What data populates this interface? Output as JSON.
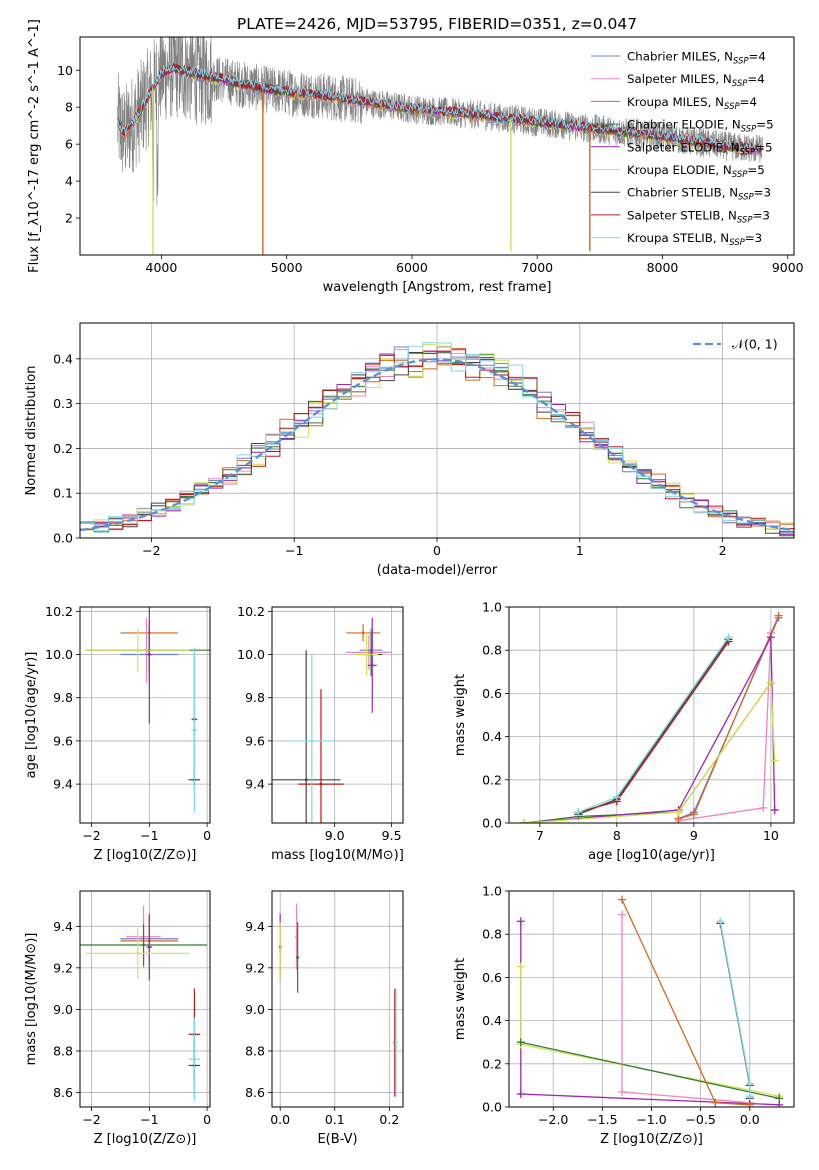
{
  "figure": {
    "title": "PLATE=2426, MJD=53795, FIBERID=0351, z=0.047"
  },
  "colors": {
    "chabrier_miles": "#6f7fd4",
    "salpeter_miles": "#ee86bd",
    "kroupa_miles": "#d2691e",
    "chabrier_elodie": "#2e7d32",
    "salpeter_elodie": "#9c27b0",
    "kroupa_elodie": "#d4e157",
    "chabrier_stelib": "#444444",
    "salpeter_stelib": "#b71c1c",
    "kroupa_stelib": "#80d8e8",
    "data_spectrum": "#808080",
    "normal_curve": "#5b8fd9"
  },
  "chart_data": [
    {
      "id": "spectrum",
      "type": "line",
      "xlabel": "wavelength [Angstrom, rest frame]",
      "ylabel": "Flux [f_λ10^-17 erg cm^-2 s^-1 A^-1]",
      "xlim": [
        3350,
        9050
      ],
      "ylim": [
        0,
        11.8
      ],
      "xticks": [
        "4000",
        "5000",
        "6000",
        "7000",
        "8000",
        "9000"
      ],
      "yticks": [
        "2",
        "4",
        "6",
        "8",
        "10"
      ],
      "grid": false,
      "legend": "right",
      "legend_entries": [
        "Chabrier MILES, N_SSP=4",
        "Salpeter MILES, N_SSP=4",
        "Kroupa MILES, N_SSP=4",
        "Chabrier ELODIE, N_SSP=5",
        "Salpeter ELODIE, N_SSP=5",
        "Kroupa ELODIE, N_SSP=5",
        "Chabrier STELIB, N_SSP=3",
        "Salpeter STELIB, N_SSP=3",
        "Kroupa STELIB, N_SSP=3"
      ],
      "data_range": [
        3650,
        8800
      ],
      "model_continuum": [
        {
          "x": 3650,
          "y": 7.2
        },
        {
          "x": 3700,
          "y": 6.5
        },
        {
          "x": 3800,
          "y": 7.4
        },
        {
          "x": 3900,
          "y": 8.6
        },
        {
          "x": 4000,
          "y": 9.8
        },
        {
          "x": 4100,
          "y": 10.1
        },
        {
          "x": 4200,
          "y": 9.9
        },
        {
          "x": 4400,
          "y": 9.6
        },
        {
          "x": 4600,
          "y": 9.3
        },
        {
          "x": 4800,
          "y": 9.0
        },
        {
          "x": 5000,
          "y": 8.8
        },
        {
          "x": 5200,
          "y": 8.7
        },
        {
          "x": 5500,
          "y": 8.4
        },
        {
          "x": 6000,
          "y": 7.9
        },
        {
          "x": 6500,
          "y": 7.6
        },
        {
          "x": 7000,
          "y": 7.2
        },
        {
          "x": 7500,
          "y": 6.8
        },
        {
          "x": 8000,
          "y": 6.4
        },
        {
          "x": 8500,
          "y": 5.9
        },
        {
          "x": 8800,
          "y": 5.7
        }
      ],
      "model_dips": [
        {
          "x": 3933,
          "y": 0.0,
          "color": "kroupa_elodie"
        },
        {
          "x": 4810,
          "y": 0.0,
          "color": "kroupa_miles"
        },
        {
          "x": 6790,
          "y": 0.2,
          "color": "kroupa_elodie"
        },
        {
          "x": 7420,
          "y": 0.2,
          "color": "kroupa_miles"
        }
      ]
    },
    {
      "id": "residuals",
      "type": "bar",
      "xlabel": "(data-model)/error",
      "ylabel": "Normed distribution",
      "xlim": [
        -2.5,
        2.5
      ],
      "ylim": [
        0,
        0.48
      ],
      "xticks": [
        "−2",
        "−1",
        "0",
        "1",
        "2"
      ],
      "yticks": [
        "0.0",
        "0.1",
        "0.2",
        "0.3",
        "0.4"
      ],
      "grid": true,
      "legend": "top-right",
      "legend_entries": [
        "𝒩(0, 1)"
      ],
      "bin_width": 0.1,
      "series_colors": [
        "chabrier_miles",
        "salpeter_miles",
        "kroupa_miles",
        "chabrier_elodie",
        "salpeter_elodie",
        "kroupa_elodie",
        "chabrier_stelib",
        "salpeter_stelib",
        "kroupa_stelib"
      ]
    },
    {
      "id": "age-vs-z",
      "type": "scatter",
      "xlabel": "Z [log10(Z/Z⊙)]",
      "ylabel": "age [log10(age/yr)]",
      "xlim": [
        -2.2,
        0.05
      ],
      "ylim": [
        9.22,
        10.22
      ],
      "xticks": [
        "−2",
        "−1",
        "0"
      ],
      "yticks": [
        "9.4",
        "9.6",
        "9.8",
        "10.0",
        "10.2"
      ],
      "grid": true,
      "points": [
        {
          "x": -1.0,
          "y": 10.1,
          "xerr": 0.5,
          "yerr": 0.06,
          "color": "kroupa_miles"
        },
        {
          "x": -1.05,
          "y": 10.02,
          "xerr": 0.15,
          "yerr": 0.15,
          "color": "salpeter_miles"
        },
        {
          "x": -1.0,
          "y": 10.0,
          "xerr": 0.5,
          "yerr": 0.12,
          "color": "chabrier_miles"
        },
        {
          "x": -1.0,
          "y": 10.02,
          "xerr": 1.1,
          "yerr": 0.1,
          "color": "chabrier_elodie"
        },
        {
          "x": -1.0,
          "y": 10.0,
          "xerr": 0.05,
          "yerr": 0.32,
          "color": "salpeter_elodie"
        },
        {
          "x": -1.2,
          "y": 10.02,
          "xerr": 0.9,
          "yerr": 0.1,
          "color": "kroupa_elodie"
        },
        {
          "x": -0.22,
          "y": 9.42,
          "xerr": 0.1,
          "yerr": 0.04,
          "color": "chabrier_stelib"
        },
        {
          "x": -0.22,
          "y": 9.7,
          "xerr": 0.05,
          "yerr": 0.3,
          "color": "salpeter_stelib"
        },
        {
          "x": -0.22,
          "y": 9.65,
          "xerr": 0.05,
          "yerr": 0.38,
          "color": "kroupa_stelib"
        }
      ]
    },
    {
      "id": "age-vs-mass",
      "type": "scatter",
      "xlabel": "mass [log10(M/M⊙)]",
      "ylabel": "",
      "xlim": [
        8.45,
        9.6
      ],
      "ylim": [
        9.22,
        10.22
      ],
      "xticks": [
        "9.0",
        "9.5"
      ],
      "yticks": [
        "9.4",
        "9.6",
        "9.8",
        "10.0",
        "10.2"
      ],
      "grid": true,
      "points": [
        {
          "x": 9.25,
          "y": 10.1,
          "xerr": 0.15,
          "yerr": 0.04,
          "color": "kroupa_miles"
        },
        {
          "x": 9.3,
          "y": 10.01,
          "xerr": 0.2,
          "yerr": 0.08,
          "color": "salpeter_miles"
        },
        {
          "x": 9.32,
          "y": 10.02,
          "xerr": 0.1,
          "yerr": 0.1,
          "color": "chabrier_miles"
        },
        {
          "x": 9.32,
          "y": 10.0,
          "xerr": 0.1,
          "yerr": 0.1,
          "color": "chabrier_elodie"
        },
        {
          "x": 9.33,
          "y": 9.95,
          "xerr": 0.04,
          "yerr": 0.22,
          "color": "salpeter_elodie"
        },
        {
          "x": 9.28,
          "y": 10.0,
          "xerr": 0.1,
          "yerr": 0.1,
          "color": "kroupa_elodie"
        },
        {
          "x": 8.75,
          "y": 9.42,
          "xerr": 0.3,
          "yerr": 0.6,
          "color": "chabrier_stelib"
        },
        {
          "x": 8.88,
          "y": 9.4,
          "xerr": 0.2,
          "yerr": 0.44,
          "color": "salpeter_stelib"
        },
        {
          "x": 8.8,
          "y": 9.6,
          "xerr": 0.2,
          "yerr": 0.4,
          "color": "kroupa_stelib"
        }
      ]
    },
    {
      "id": "weight-vs-age",
      "type": "line",
      "xlabel": "age [log10(age/yr)]",
      "ylabel": "mass weight",
      "xlim": [
        6.6,
        10.3
      ],
      "ylim": [
        0,
        1.0
      ],
      "xticks": [
        "7",
        "8",
        "9",
        "10"
      ],
      "yticks": [
        "0.0",
        "0.2",
        "0.4",
        "0.6",
        "0.8",
        "1.0"
      ],
      "grid": true,
      "series": [
        {
          "color": "chabrier_miles",
          "points": [
            [
              8.8,
              0.02
            ],
            [
              9.0,
              0.05
            ],
            [
              10.1,
              0.95
            ]
          ]
        },
        {
          "color": "salpeter_miles",
          "points": [
            [
              8.8,
              0.01
            ],
            [
              9.9,
              0.07
            ],
            [
              10.0,
              0.88
            ]
          ]
        },
        {
          "color": "kroupa_miles",
          "points": [
            [
              8.8,
              0.02
            ],
            [
              9.0,
              0.04
            ],
            [
              10.1,
              0.96
            ]
          ]
        },
        {
          "color": "chabrier_elodie",
          "points": [
            [
              6.8,
              0.0
            ],
            [
              7.5,
              0.03
            ],
            [
              8.8,
              0.05
            ],
            [
              10.0,
              0.65
            ]
          ]
        },
        {
          "color": "salpeter_elodie",
          "points": [
            [
              6.8,
              0.0
            ],
            [
              8.8,
              0.06
            ],
            [
              10.0,
              0.86
            ],
            [
              10.05,
              0.06
            ]
          ]
        },
        {
          "color": "kroupa_elodie",
          "points": [
            [
              6.8,
              0.0
            ],
            [
              8.8,
              0.05
            ],
            [
              10.0,
              0.65
            ],
            [
              10.05,
              0.29
            ]
          ]
        },
        {
          "color": "chabrier_stelib",
          "points": [
            [
              7.5,
              0.04
            ],
            [
              8.0,
              0.11
            ],
            [
              9.45,
              0.85
            ]
          ]
        },
        {
          "color": "salpeter_stelib",
          "points": [
            [
              7.5,
              0.05
            ],
            [
              8.0,
              0.1
            ],
            [
              9.45,
              0.84
            ]
          ]
        },
        {
          "color": "kroupa_stelib",
          "points": [
            [
              7.5,
              0.05
            ],
            [
              8.0,
              0.12
            ],
            [
              9.45,
              0.86
            ]
          ]
        }
      ]
    },
    {
      "id": "mass-vs-z",
      "type": "scatter",
      "xlabel": "Z [log10(Z/Z⊙)]",
      "ylabel": "mass [log10(M/M⊙)]",
      "xlim": [
        -2.2,
        0.05
      ],
      "ylim": [
        8.53,
        9.57
      ],
      "xticks": [
        "−2",
        "−1",
        "0"
      ],
      "yticks": [
        "8.6",
        "8.8",
        "9.0",
        "9.2",
        "9.4"
      ],
      "grid": true,
      "points": [
        {
          "x": -1.0,
          "y": 9.34,
          "xerr": 0.5,
          "yerr": 0.1,
          "color": "chabrier_miles"
        },
        {
          "x": -1.1,
          "y": 9.35,
          "xerr": 0.3,
          "yerr": 0.15,
          "color": "salpeter_miles"
        },
        {
          "x": -1.0,
          "y": 9.33,
          "xerr": 0.5,
          "yerr": 0.12,
          "color": "kroupa_miles"
        },
        {
          "x": -1.1,
          "y": 9.31,
          "xerr": 1.1,
          "yerr": 0.1,
          "color": "chabrier_elodie"
        },
        {
          "x": -1.0,
          "y": 9.3,
          "xerr": 0.05,
          "yerr": 0.16,
          "color": "salpeter_elodie"
        },
        {
          "x": -1.2,
          "y": 9.27,
          "xerr": 0.9,
          "yerr": 0.12,
          "color": "kroupa_elodie"
        },
        {
          "x": -0.22,
          "y": 8.73,
          "xerr": 0.1,
          "yerr": 0.14,
          "color": "chabrier_stelib"
        },
        {
          "x": -0.22,
          "y": 8.88,
          "xerr": 0.1,
          "yerr": 0.22,
          "color": "salpeter_stelib"
        },
        {
          "x": -0.22,
          "y": 8.76,
          "xerr": 0.1,
          "yerr": 0.2,
          "color": "kroupa_stelib"
        }
      ]
    },
    {
      "id": "mass-vs-ebv",
      "type": "scatter",
      "xlabel": "E(B-V)",
      "ylabel": "",
      "xlim": [
        -0.015,
        0.225
      ],
      "ylim": [
        8.53,
        9.57
      ],
      "xticks": [
        "0.0",
        "0.1",
        "0.2"
      ],
      "yticks": [
        "8.6",
        "8.8",
        "9.0",
        "9.2",
        "9.4"
      ],
      "grid": true,
      "points": [
        {
          "x": 0.0,
          "y": 9.3,
          "yerr": 0.16,
          "color": "salpeter_elodie"
        },
        {
          "x": 0.0,
          "y": 9.28,
          "yerr": 0.14,
          "color": "kroupa_elodie"
        },
        {
          "x": 0.03,
          "y": 9.35,
          "yerr": 0.16,
          "color": "salpeter_miles"
        },
        {
          "x": 0.032,
          "y": 9.25,
          "yerr": 0.17,
          "color": "chabrier_elodie"
        },
        {
          "x": 0.21,
          "y": 8.84,
          "yerr": 0.26,
          "color": "salpeter_stelib"
        },
        {
          "x": 0.212,
          "y": 8.84,
          "yerr": 0.26,
          "color": "kroupa_stelib"
        }
      ]
    },
    {
      "id": "weight-vs-z",
      "type": "line",
      "xlabel": "Z [log10(Z/Z⊙)]",
      "ylabel": "mass weight",
      "xlim": [
        -2.45,
        0.45
      ],
      "ylim": [
        0,
        1.0
      ],
      "xticks": [
        "−2.0",
        "−1.5",
        "−1.0",
        "−0.5",
        "0.0"
      ],
      "yticks": [
        "0.0",
        "0.2",
        "0.4",
        "0.6",
        "0.8",
        "1.0"
      ],
      "grid": true,
      "series": [
        {
          "color": "salpeter_elodie",
          "points": [
            [
              -2.33,
              0.86
            ],
            [
              -2.33,
              0.06
            ],
            [
              0.3,
              0.01
            ]
          ]
        },
        {
          "color": "kroupa_elodie",
          "points": [
            [
              -2.33,
              0.65
            ],
            [
              -2.33,
              0.29
            ],
            [
              0.3,
              0.05
            ]
          ]
        },
        {
          "color": "chabrier_elodie",
          "points": [
            [
              -2.33,
              0.3
            ],
            [
              0.3,
              0.04
            ]
          ]
        },
        {
          "color": "salpeter_miles",
          "points": [
            [
              -1.3,
              0.89
            ],
            [
              -1.3,
              0.07
            ],
            [
              0.0,
              0.02
            ]
          ]
        },
        {
          "color": "kroupa_miles",
          "points": [
            [
              -1.3,
              0.96
            ],
            [
              -0.35,
              0.02
            ],
            [
              0.0,
              0.01
            ]
          ]
        },
        {
          "color": "chabrier_stelib",
          "points": [
            [
              -0.3,
              0.85
            ],
            [
              0.0,
              0.1
            ],
            [
              0.0,
              0.04
            ]
          ]
        },
        {
          "color": "kroupa_stelib",
          "points": [
            [
              -0.3,
              0.86
            ],
            [
              0.0,
              0.11
            ],
            [
              0.0,
              0.05
            ]
          ]
        }
      ]
    }
  ]
}
